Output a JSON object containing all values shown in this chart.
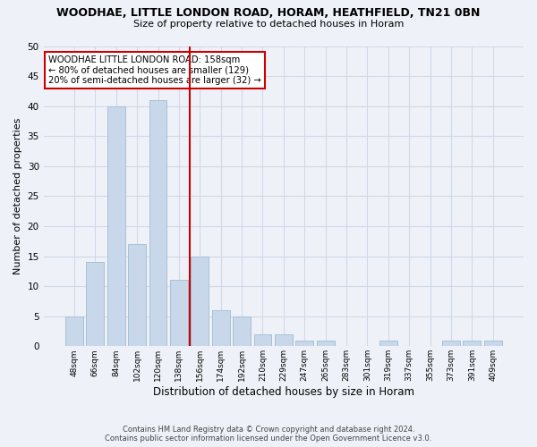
{
  "title1": "WOODHAE, LITTLE LONDON ROAD, HORAM, HEATHFIELD, TN21 0BN",
  "title2": "Size of property relative to detached houses in Horam",
  "xlabel": "Distribution of detached houses by size in Horam",
  "ylabel": "Number of detached properties",
  "categories": [
    "48sqm",
    "66sqm",
    "84sqm",
    "102sqm",
    "120sqm",
    "138sqm",
    "156sqm",
    "174sqm",
    "192sqm",
    "210sqm",
    "229sqm",
    "247sqm",
    "265sqm",
    "283sqm",
    "301sqm",
    "319sqm",
    "337sqm",
    "355sqm",
    "373sqm",
    "391sqm",
    "409sqm"
  ],
  "values": [
    5,
    14,
    40,
    17,
    41,
    11,
    15,
    6,
    5,
    2,
    2,
    1,
    1,
    0,
    0,
    1,
    0,
    0,
    1,
    1,
    1
  ],
  "bar_color": "#c8d8ea",
  "bar_edgecolor": "#a8c0d6",
  "redline_index": 5.5,
  "annotation_text": "WOODHAE LITTLE LONDON ROAD: 158sqm\n← 80% of detached houses are smaller (129)\n20% of semi-detached houses are larger (32) →",
  "annotation_box_edgecolor": "#cc0000",
  "annotation_box_facecolor": "#ffffff",
  "redline_color": "#cc0000",
  "ylim": [
    0,
    50
  ],
  "yticks": [
    0,
    5,
    10,
    15,
    20,
    25,
    30,
    35,
    40,
    45,
    50
  ],
  "grid_color": "#d0d8e8",
  "footer1": "Contains HM Land Registry data © Crown copyright and database right 2024.",
  "footer2": "Contains public sector information licensed under the Open Government Licence v3.0.",
  "bg_color": "#eef2f8"
}
